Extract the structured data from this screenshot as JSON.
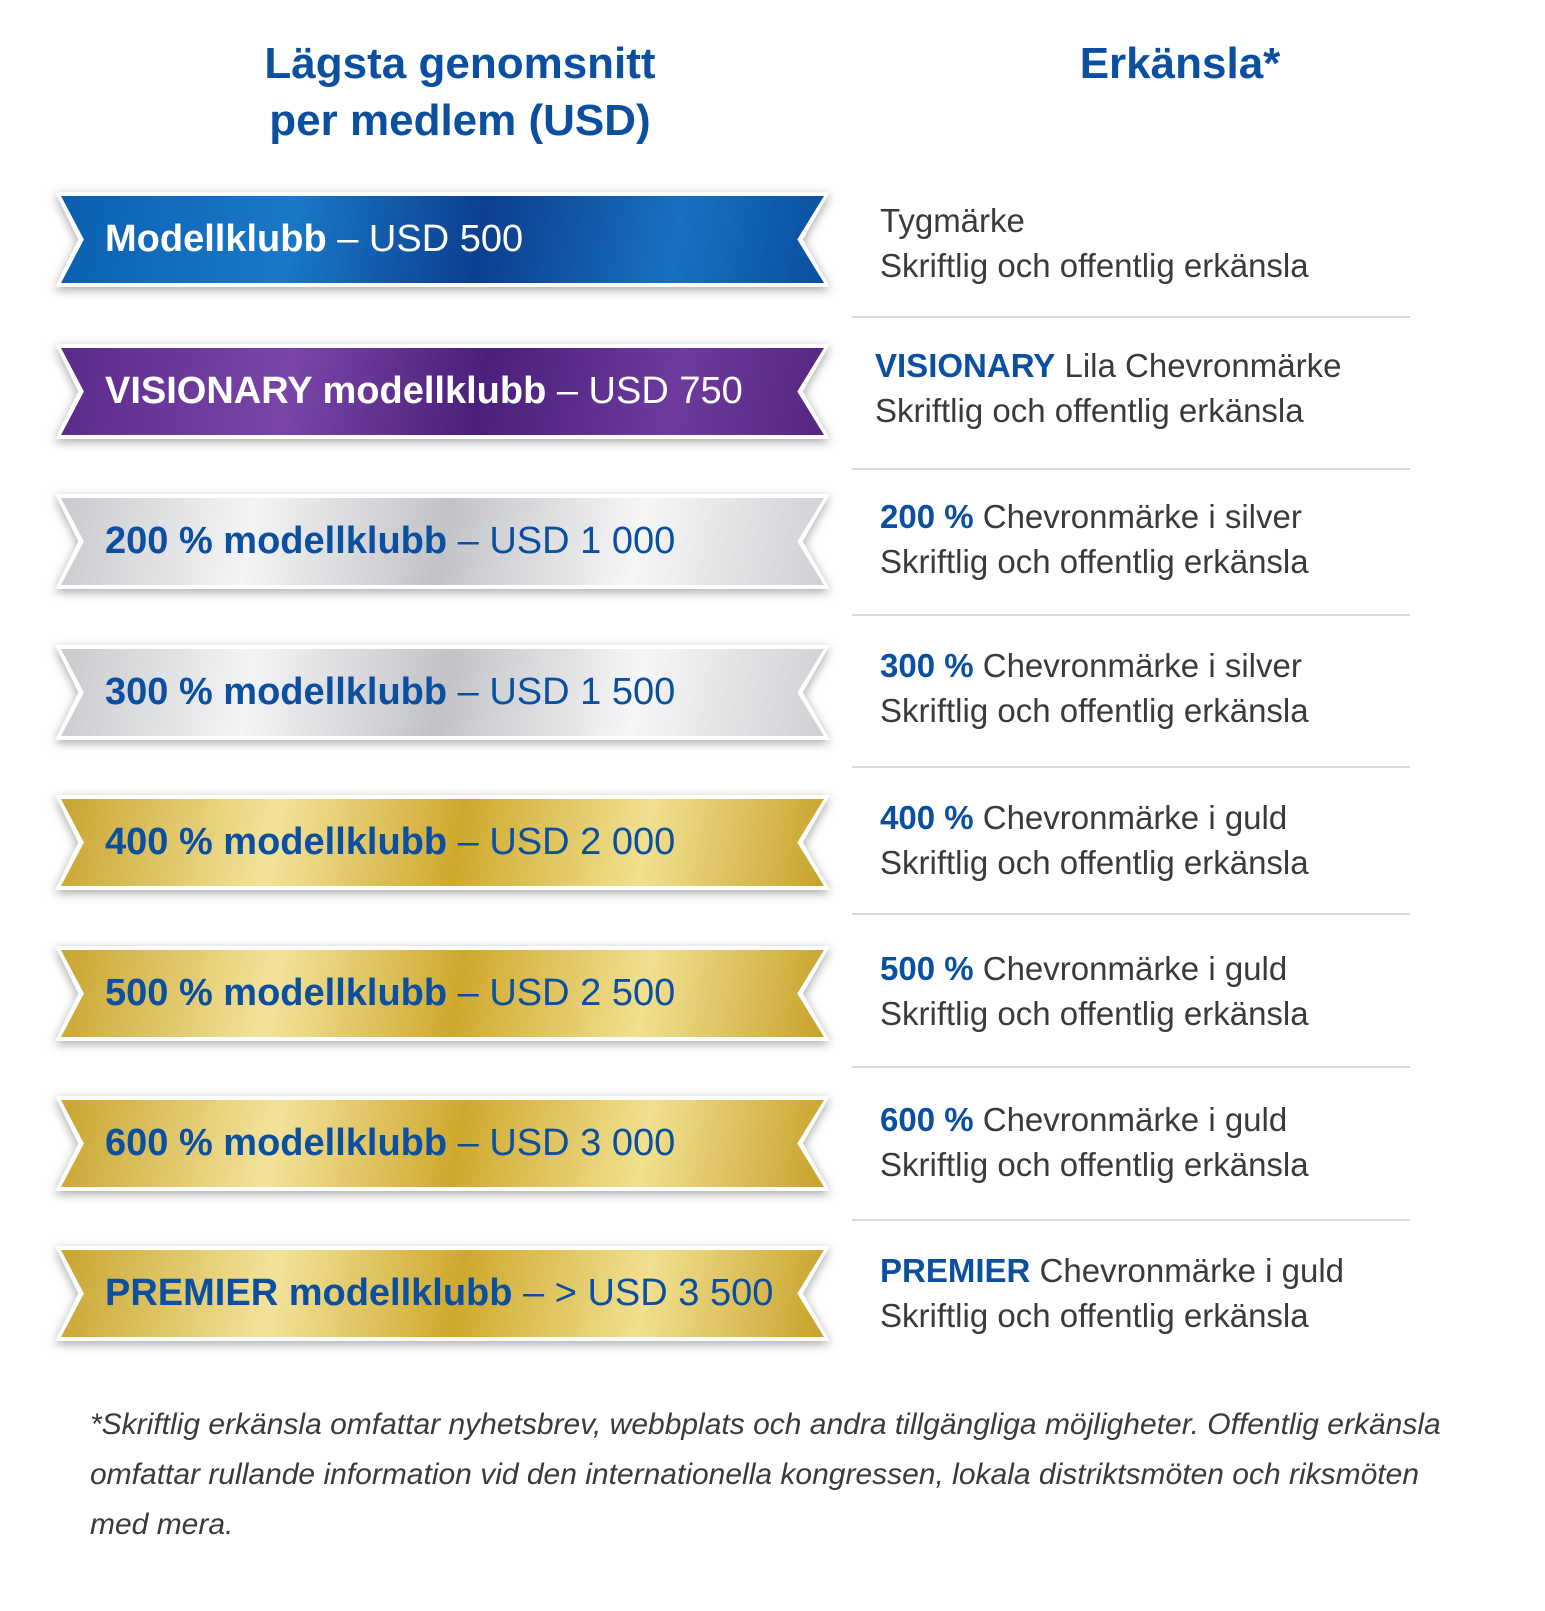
{
  "header": {
    "left_line1": "Lägsta genomsnitt",
    "left_line2": "per medlem (USD)",
    "right": "Erkänsla*"
  },
  "rows": [
    {
      "ribbon_bold": "Modellklubb",
      "ribbon_rest": " – USD 500",
      "rec_bold": "",
      "rec_rest": "Tygmärke",
      "rec_line2": "Skriftlig och offentlig erkänsla",
      "style": "blue"
    },
    {
      "ribbon_bold": "VISIONARY modellklubb",
      "ribbon_rest": " – USD 750",
      "rec_bold": "VISIONARY",
      "rec_rest": " Lila Chevronmärke",
      "rec_line2": "Skriftlig och offentlig erkänsla",
      "style": "purple"
    },
    {
      "ribbon_bold": "200 % modellklubb",
      "ribbon_rest": " – USD 1 000",
      "rec_bold": "200 %",
      "rec_rest": " Chevronmärke i silver",
      "rec_line2": "Skriftlig och offentlig erkänsla",
      "style": "silver"
    },
    {
      "ribbon_bold": "300 % modellklubb",
      "ribbon_rest": " – USD 1 500",
      "rec_bold": "300 %",
      "rec_rest": " Chevronmärke i silver",
      "rec_line2": "Skriftlig och offentlig erkänsla",
      "style": "silver"
    },
    {
      "ribbon_bold": "400 % modellklubb",
      "ribbon_rest": " – USD 2 000",
      "rec_bold": "400 %",
      "rec_rest": " Chevronmärke i guld",
      "rec_line2": "Skriftlig och offentlig erkänsla",
      "style": "gold"
    },
    {
      "ribbon_bold": "500 % modellklubb",
      "ribbon_rest": " – USD 2 500",
      "rec_bold": "500 %",
      "rec_rest": " Chevronmärke i guld",
      "rec_line2": "Skriftlig och offentlig erkänsla",
      "style": "gold"
    },
    {
      "ribbon_bold": "600 % modellklubb",
      "ribbon_rest": " – USD 3 000",
      "rec_bold": "600 %",
      "rec_rest": " Chevronmärke i guld",
      "rec_line2": "Skriftlig och offentlig erkänsla",
      "style": "gold"
    },
    {
      "ribbon_bold": "PREMIER modellklubb",
      "ribbon_rest": " – > USD 3 500",
      "rec_bold": "PREMIER",
      "rec_rest": " Chevronmärke i guld",
      "rec_line2": "Skriftlig och offentlig erkänsla",
      "style": "gold"
    }
  ],
  "footnote": "*Skriftlig erkänsla omfattar nyhetsbrev, webbplats och andra tillgängliga möjligheter. Offentlig erkänsla omfattar rullande information vid den internationella kongressen, lokala distriktsmöten och riksmöten med mera.",
  "colors": {
    "heading_blue": "#0b4fa0",
    "body_text": "#3a3a3a",
    "ribbon_blue": "#0b5fb0",
    "ribbon_purple": "#5a2a8a",
    "ribbon_silver": "#d8d9dc",
    "ribbon_gold": "#d9b845"
  }
}
